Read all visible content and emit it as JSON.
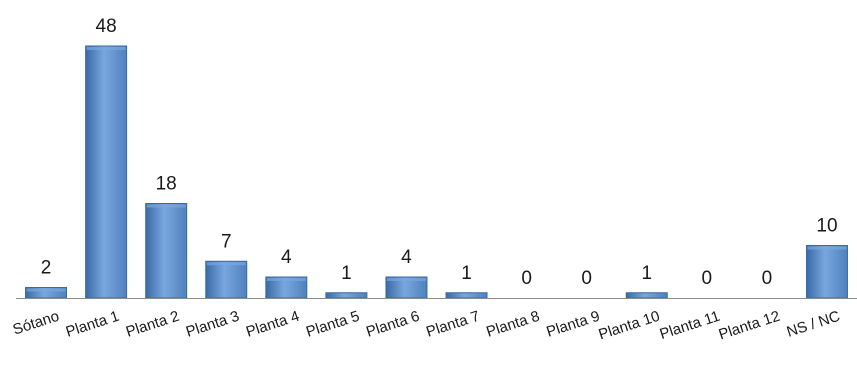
{
  "chart_data": {
    "type": "bar",
    "categories": [
      "Sótano",
      "Planta 1",
      "Planta 2",
      "Planta 3",
      "Planta 4",
      "Planta 5",
      "Planta 6",
      "Planta 7",
      "Planta 8",
      "Planta 9",
      "Planta 10",
      "Planta 11",
      "Planta 12",
      "NS / NC"
    ],
    "values": [
      2,
      48,
      18,
      7,
      4,
      1,
      4,
      1,
      0,
      0,
      1,
      0,
      0,
      10
    ],
    "data_labels": [
      "2",
      "48",
      "18",
      "7",
      "4",
      "1",
      "4",
      "1",
      "0",
      "0",
      "1",
      "0",
      "0",
      "10"
    ],
    "title": "",
    "xlabel": "",
    "ylabel": "",
    "ylim": [
      0,
      48
    ],
    "grid": false,
    "legend": "none",
    "bar_color": "#4f81bd",
    "bar_color_light": "#79a6de",
    "bar_color_dark": "#3a6aa5",
    "axis_color": "#8c8c8c"
  }
}
